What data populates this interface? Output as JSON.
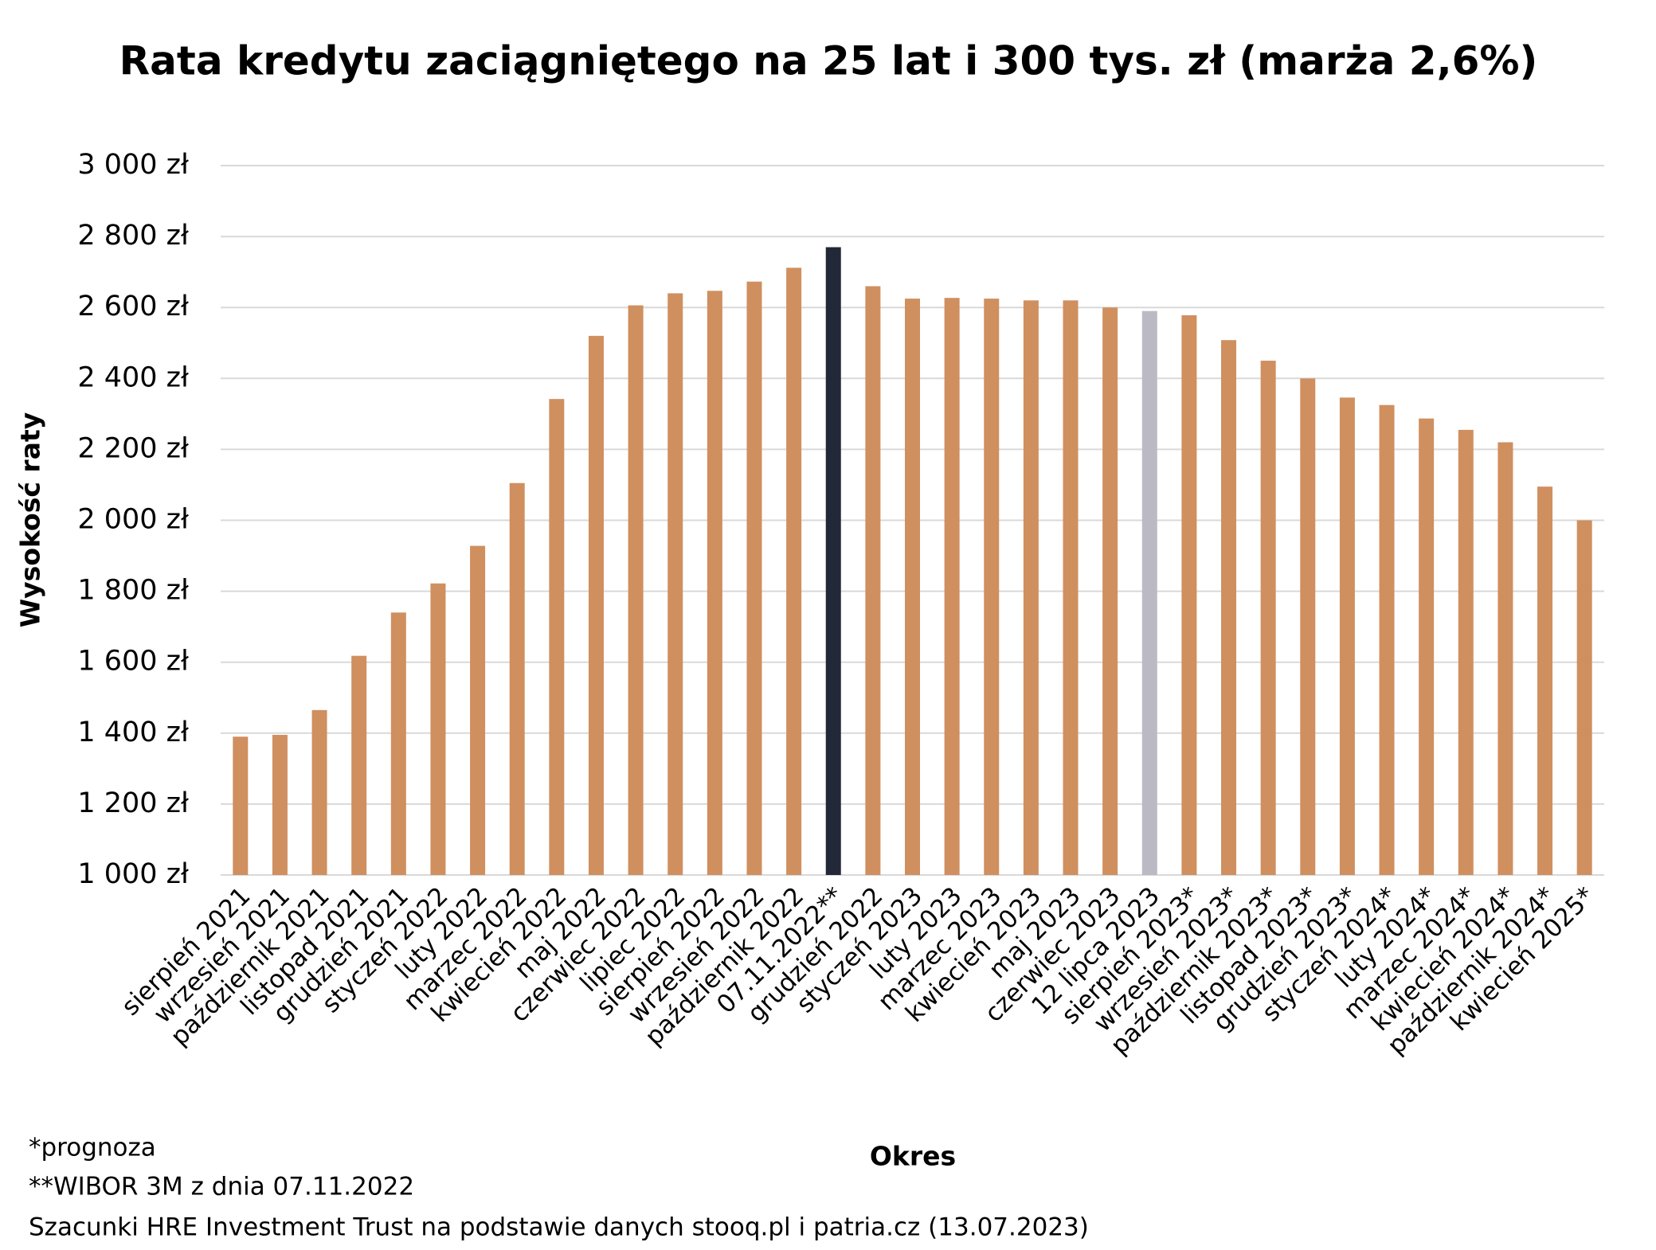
{
  "chart_data": {
    "type": "bar",
    "title": "Rata kredytu zaciągniętego na 25 lat i 300 tys. zł (marża 2,6%)",
    "y_label": "Wysokość raty",
    "x_label": "Okres",
    "categories": [
      "sierpień 2021",
      "wrzesień 2021",
      "październik 2021",
      "listopad 2021",
      "grudzień 2021",
      "styczeń 2022",
      "luty 2022",
      "marzec 2022",
      "kwiecień 2022",
      "maj 2022",
      "czerwiec 2022",
      "lipiec 2022",
      "sierpień 2022",
      "wrzesień 2022",
      "październik 2022",
      "07.11.2022**",
      "grudzień 2022",
      "styczeń 2023",
      "luty 2023",
      "marzec 2023",
      "kwiecień 2023",
      "maj 2023",
      "czerwiec 2023",
      "12 lipca 2023",
      "sierpień 2023*",
      "wrzesień 2023*",
      "październik 2023*",
      "listopad 2023*",
      "grudzień 2023*",
      "styczeń 2024*",
      "luty 2024*",
      "marzec 2024*",
      "kwiecień 2024*",
      "październik 2024*",
      "kwiecień 2025*"
    ],
    "values": [
      1390,
      1395,
      1465,
      1618,
      1740,
      1822,
      1928,
      2105,
      2342,
      2520,
      2606,
      2640,
      2647,
      2673,
      2712,
      2770,
      2660,
      2625,
      2627,
      2625,
      2620,
      2620,
      2600,
      2590,
      2578,
      2508,
      2450,
      2400,
      2346,
      2325,
      2287,
      2255,
      2220,
      2095,
      2000
    ],
    "colors": [
      "#d08f5f",
      "#d08f5f",
      "#d08f5f",
      "#d08f5f",
      "#d08f5f",
      "#d08f5f",
      "#d08f5f",
      "#d08f5f",
      "#d08f5f",
      "#d08f5f",
      "#d08f5f",
      "#d08f5f",
      "#d08f5f",
      "#d08f5f",
      "#d08f5f",
      "#232838",
      "#d08f5f",
      "#d08f5f",
      "#d08f5f",
      "#d08f5f",
      "#d08f5f",
      "#d08f5f",
      "#d08f5f",
      "#bbbac4",
      "#d08f5f",
      "#d08f5f",
      "#d08f5f",
      "#d08f5f",
      "#d08f5f",
      "#d08f5f",
      "#d08f5f",
      "#d08f5f",
      "#d08f5f",
      "#d08f5f",
      "#d08f5f"
    ],
    "ylim": [
      1000,
      3000
    ],
    "yticks": [
      {
        "value": 1000,
        "label": "1 000 zł"
      },
      {
        "value": 1200,
        "label": "1 200 zł"
      },
      {
        "value": 1400,
        "label": "1 400 zł"
      },
      {
        "value": 1600,
        "label": "1 600 zł"
      },
      {
        "value": 1800,
        "label": "1 800 zł"
      },
      {
        "value": 2000,
        "label": "2 000 zł"
      },
      {
        "value": 2200,
        "label": "2 200 zł"
      },
      {
        "value": 2400,
        "label": "2 400 zł"
      },
      {
        "value": 2600,
        "label": "2 600 zł"
      },
      {
        "value": 2800,
        "label": "2 800 zł"
      },
      {
        "value": 3000,
        "label": "3 000 zł"
      }
    ],
    "grid": true,
    "notes": [
      "*prognoza",
      "**WIBOR 3M z dnia 07.11.2022",
      "Szacunki HRE Investment Trust na podstawie danych stooq.pl i patria.cz (13.07.2023)"
    ]
  }
}
